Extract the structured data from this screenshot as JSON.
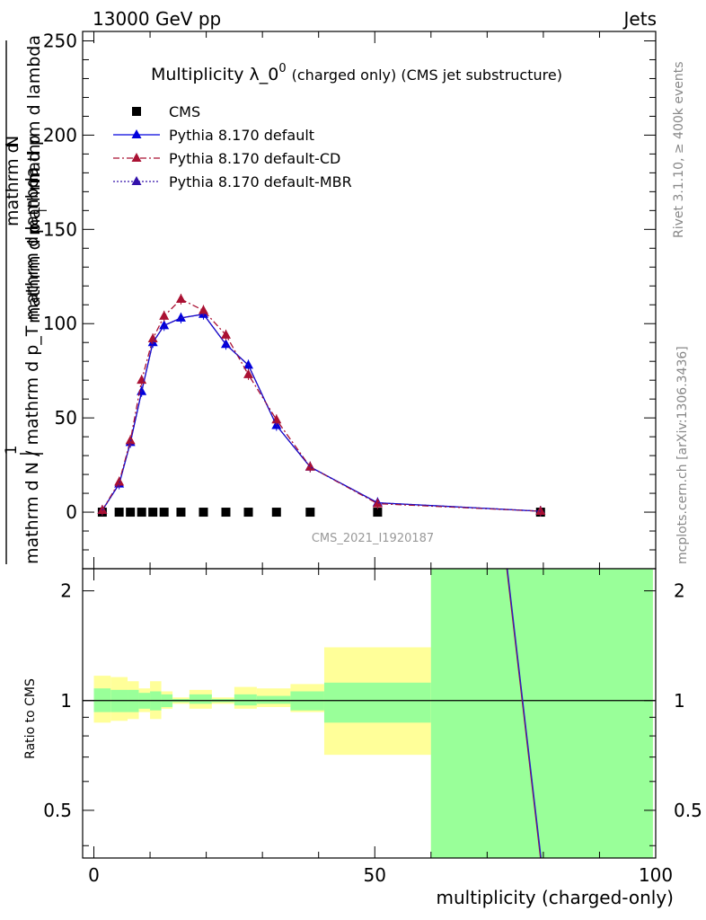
{
  "header": {
    "left": "13000 GeV pp",
    "right": "Jets"
  },
  "side_labels": {
    "rivet": "Rivet 3.1.10, ≥ 400k events",
    "mcplots": "mcplots.cern.ch [arXiv:1306.3436]"
  },
  "chart_data": {
    "type": "line",
    "title_main": "Multiplicity λ_0",
    "title_sup": "0",
    "title_small": "(charged only) (CMS jet substructure)",
    "watermark": "CMS_2021_I1920187",
    "xlabel": "multiplicity (charged-only)",
    "ylabel_main": "mathrm d N / mathrm d p_T mathrm d lambda",
    "ylabel_num": "1",
    "ylabel_upper_1": "mathrm d",
    "ylabel_upper_2": "N",
    "ylabel_upper_3": "mathrm d p",
    "ylabel_upper_4": "mathrm d p",
    "ylabel_upper_5": "mathrm d lambda",
    "ylabel_sub": "T",
    "ylabel_ratio": "Ratio to CMS",
    "xlim": [
      -2,
      100
    ],
    "ylim": [
      -30,
      255
    ],
    "ratio_ylim": [
      0.37,
      2.3
    ],
    "x_ticks": [
      "0",
      "50",
      "100"
    ],
    "y_ticks": [
      "0",
      "50",
      "100",
      "150",
      "200",
      "250"
    ],
    "ratio_ticks": [
      "0.5",
      "1",
      "2"
    ],
    "ratio_tick_values": [
      0.5,
      1,
      2
    ],
    "legend": [
      {
        "label": "CMS",
        "color": "#000000",
        "style": "square"
      },
      {
        "label": "Pythia 8.170 default",
        "color": "#0000dd",
        "style": "solid"
      },
      {
        "label": "Pythia 8.170 default-CD",
        "color": "#aa1133",
        "style": "dashdot"
      },
      {
        "label": "Pythia 8.170 default-MBR",
        "color": "#3311aa",
        "style": "dotted"
      }
    ],
    "series": [
      {
        "name": "CMS",
        "x": [
          1.5,
          4.5,
          6.5,
          8.5,
          10.5,
          12.5,
          15.5,
          19.5,
          23.5,
          27.5,
          32.5,
          38.5,
          50.5,
          79.5
        ],
        "values": [
          0,
          0,
          0,
          0,
          0,
          0,
          0,
          0,
          0,
          0,
          0,
          0,
          0,
          0
        ]
      },
      {
        "name": "Pythia 8.170 default",
        "x": [
          1.5,
          4.5,
          6.5,
          8.5,
          10.5,
          12.5,
          15.5,
          19.5,
          23.5,
          27.5,
          32.5,
          38.5,
          50.5,
          79.5
        ],
        "values": [
          1,
          15,
          37,
          64,
          90,
          99,
          103,
          105,
          89,
          78,
          46,
          24,
          5,
          0.5
        ]
      },
      {
        "name": "Pythia 8.170 default-CD",
        "x": [
          1.5,
          4.5,
          6.5,
          8.5,
          10.5,
          12.5,
          15.5,
          19.5,
          23.5,
          27.5,
          32.5,
          38.5,
          50.5,
          79.5
        ],
        "values": [
          1,
          16,
          38,
          70,
          92,
          104,
          113,
          107,
          94,
          73,
          49,
          24,
          4.5,
          0.5
        ]
      },
      {
        "name": "Pythia 8.170 default-MBR",
        "x": [
          1.5,
          4.5,
          6.5,
          8.5,
          10.5,
          12.5,
          15.5,
          19.5,
          23.5,
          27.5,
          32.5,
          38.5,
          50.5,
          79.5
        ],
        "values": [
          1,
          15,
          37,
          64,
          90,
          99,
          103,
          105,
          89,
          78,
          46,
          24,
          5,
          0.5
        ]
      }
    ],
    "ratio_bands": [
      {
        "x0": 0,
        "x1": 3,
        "in_lo": 0.93,
        "in_hi": 1.08,
        "out_lo": 0.87,
        "out_hi": 1.17
      },
      {
        "x0": 3,
        "x1": 6,
        "in_lo": 0.93,
        "in_hi": 1.07,
        "out_lo": 0.88,
        "out_hi": 1.16
      },
      {
        "x0": 6,
        "x1": 8,
        "in_lo": 0.93,
        "in_hi": 1.07,
        "out_lo": 0.89,
        "out_hi": 1.13
      },
      {
        "x0": 8,
        "x1": 10,
        "in_lo": 0.95,
        "in_hi": 1.05,
        "out_lo": 0.93,
        "out_hi": 1.08
      },
      {
        "x0": 10,
        "x1": 12,
        "in_lo": 0.94,
        "in_hi": 1.06,
        "out_lo": 0.89,
        "out_hi": 1.13
      },
      {
        "x0": 12,
        "x1": 14,
        "in_lo": 0.96,
        "in_hi": 1.04,
        "out_lo": 0.95,
        "out_hi": 1.06
      },
      {
        "x0": 14,
        "x1": 17,
        "in_lo": 0.99,
        "in_hi": 1.01,
        "out_lo": 0.98,
        "out_hi": 1.02
      },
      {
        "x0": 17,
        "x1": 21,
        "in_lo": 0.98,
        "in_hi": 1.04,
        "out_lo": 0.95,
        "out_hi": 1.07
      },
      {
        "x0": 21,
        "x1": 25,
        "in_lo": 0.99,
        "in_hi": 1.01,
        "out_lo": 0.98,
        "out_hi": 1.02
      },
      {
        "x0": 25,
        "x1": 29,
        "in_lo": 0.97,
        "in_hi": 1.04,
        "out_lo": 0.95,
        "out_hi": 1.09
      },
      {
        "x0": 29,
        "x1": 35,
        "in_lo": 0.98,
        "in_hi": 1.03,
        "out_lo": 0.96,
        "out_hi": 1.08
      },
      {
        "x0": 35,
        "x1": 41,
        "in_lo": 0.94,
        "in_hi": 1.06,
        "out_lo": 0.93,
        "out_hi": 1.11
      },
      {
        "x0": 41,
        "x1": 60,
        "in_lo": 0.87,
        "in_hi": 1.12,
        "out_lo": 0.71,
        "out_hi": 1.4
      },
      {
        "x0": 60,
        "x1": 99.5,
        "in_lo": 0.3,
        "in_hi": 2.5,
        "out_lo": 0.3,
        "out_hi": 2.5
      }
    ],
    "ratio_line": {
      "x": [
        73.5,
        79.5
      ],
      "values": [
        2.3,
        0.37
      ]
    }
  }
}
